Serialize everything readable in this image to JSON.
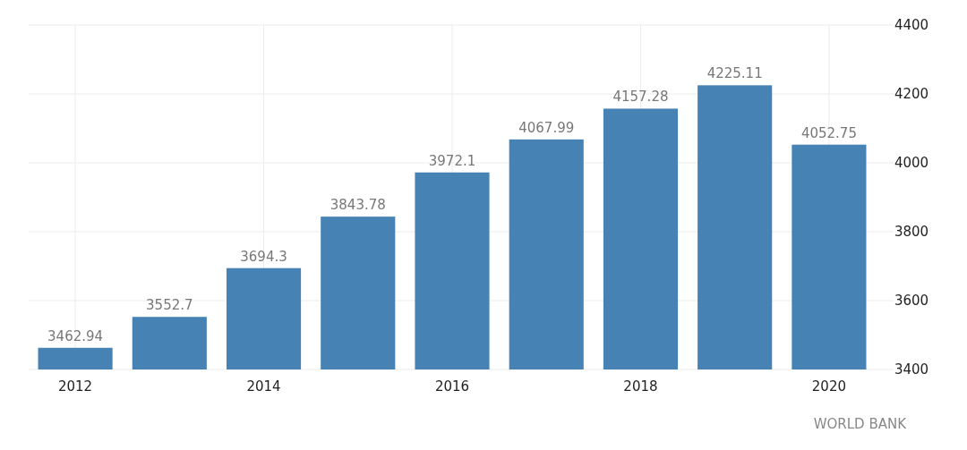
{
  "chart_data": {
    "type": "bar",
    "categories": [
      "2012",
      null,
      "2014",
      null,
      "2016",
      null,
      "2018",
      null,
      "2020"
    ],
    "values": [
      3462.94,
      3552.7,
      3694.3,
      3843.78,
      3972.1,
      4067.99,
      4157.28,
      4225.11,
      4052.75
    ],
    "color": "#4682b4",
    "ylim": [
      3400,
      4400
    ],
    "yticks": [
      3400,
      3600,
      3800,
      4000,
      4200,
      4400
    ],
    "grid": true,
    "data_labels": true,
    "annotations": [
      "WORLD BANK"
    ]
  }
}
